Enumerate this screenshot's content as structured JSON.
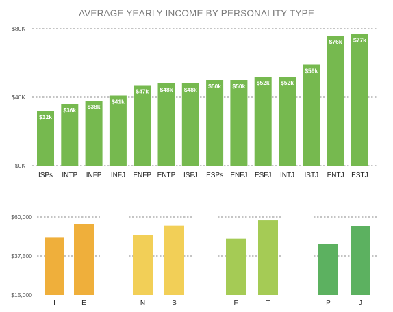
{
  "chart_data": [
    {
      "type": "bar",
      "title": "AVERAGE YEARLY INCOME BY PERSONALITY TYPE",
      "xlabel": "",
      "ylabel": "",
      "ylim": [
        0,
        80000
      ],
      "y_ticks": [
        {
          "value": 0,
          "label": "$0K"
        },
        {
          "value": 40000,
          "label": "$40K"
        },
        {
          "value": 80000,
          "label": "$80K"
        }
      ],
      "grid": true,
      "categories": [
        "ISPs",
        "INTP",
        "INFP",
        "INFJ",
        "ENFP",
        "ENTP",
        "ISFJ",
        "ESPs",
        "ENFJ",
        "ESFJ",
        "INTJ",
        "ISTJ",
        "ENTJ",
        "ESTJ"
      ],
      "values": [
        32000,
        36000,
        38000,
        41000,
        47000,
        48000,
        48000,
        50000,
        50000,
        52000,
        52000,
        59000,
        76000,
        77000
      ],
      "data_labels": [
        "$32k",
        "$36k",
        "$38k",
        "$41k",
        "$47k",
        "$48k",
        "$48k",
        "$50k",
        "$50k",
        "$52k",
        "$52k",
        "$59k",
        "$76k",
        "$77k"
      ],
      "color": "#76b94f"
    },
    {
      "type": "bar",
      "title": "",
      "ylim": [
        15000,
        60000
      ],
      "y_ticks": [
        {
          "value": 15000,
          "label": "$15,000"
        },
        {
          "value": 37500,
          "label": "$37,500"
        },
        {
          "value": 60000,
          "label": "$60,000"
        }
      ],
      "grid": true,
      "groups": [
        {
          "categories": [
            "I",
            "E"
          ],
          "values": [
            48000,
            56000
          ],
          "color": "#efaf3b"
        },
        {
          "categories": [
            "N",
            "S"
          ],
          "values": [
            49500,
            55000
          ],
          "color": "#f2cf57"
        },
        {
          "categories": [
            "F",
            "T"
          ],
          "values": [
            47500,
            58000
          ],
          "color": "#a5cb55"
        },
        {
          "categories": [
            "P",
            "J"
          ],
          "values": [
            44500,
            54500
          ],
          "color": "#5cb160"
        }
      ]
    }
  ]
}
